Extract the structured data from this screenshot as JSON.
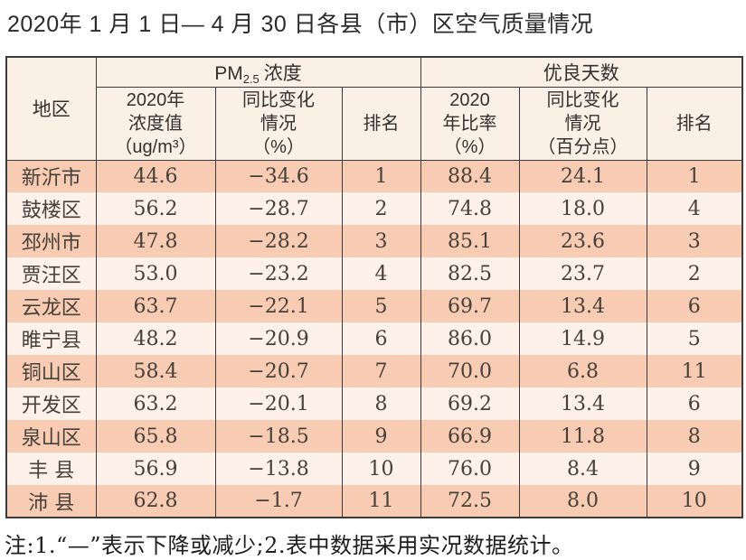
{
  "title": "2020年 1 月 1 日— 4 月 30 日各县（市）区空气质量情况",
  "colors": {
    "row_dark": "#f8ccb2",
    "row_light": "#fdf1e9",
    "header_bg": "#faf0e6",
    "border": "#3a3a3a",
    "page_bg": "#ffffff"
  },
  "table": {
    "group_headers": {
      "region": "地区",
      "pm25_prefix": "PM",
      "pm25_sub": "2.5",
      "pm25_suffix": "浓度",
      "good_days": "优良天数"
    },
    "column_headers": {
      "pm_value": "2020年\n浓度值\n（ug/m³）",
      "pm_change": "同比变化\n情况\n（%）",
      "pm_rank": "排名",
      "good_rate": "2020\n年比率\n（%）",
      "good_change": "同比变化\n情况\n（百分点）",
      "good_rank": "排名"
    },
    "rows": [
      {
        "region": "新沂市",
        "pm_value": "44.6",
        "pm_change": "−34.6",
        "pm_rank": "1",
        "good_rate": "88.4",
        "good_change": "24.1",
        "good_rank": "1"
      },
      {
        "region": "鼓楼区",
        "pm_value": "56.2",
        "pm_change": "−28.7",
        "pm_rank": "2",
        "good_rate": "74.8",
        "good_change": "18.0",
        "good_rank": "4"
      },
      {
        "region": "邳州市",
        "pm_value": "47.8",
        "pm_change": "−28.2",
        "pm_rank": "3",
        "good_rate": "85.1",
        "good_change": "23.6",
        "good_rank": "3"
      },
      {
        "region": "贾汪区",
        "pm_value": "53.0",
        "pm_change": "−23.2",
        "pm_rank": "4",
        "good_rate": "82.5",
        "good_change": "23.7",
        "good_rank": "2"
      },
      {
        "region": "云龙区",
        "pm_value": "63.7",
        "pm_change": "−22.1",
        "pm_rank": "5",
        "good_rate": "69.7",
        "good_change": "13.4",
        "good_rank": "6"
      },
      {
        "region": "睢宁县",
        "pm_value": "48.2",
        "pm_change": "−20.9",
        "pm_rank": "6",
        "good_rate": "86.0",
        "good_change": "14.9",
        "good_rank": "5"
      },
      {
        "region": "铜山区",
        "pm_value": "58.4",
        "pm_change": "−20.7",
        "pm_rank": "7",
        "good_rate": "70.0",
        "good_change": "6.8",
        "good_rank": "11"
      },
      {
        "region": "开发区",
        "pm_value": "63.2",
        "pm_change": "−20.1",
        "pm_rank": "8",
        "good_rate": "69.2",
        "good_change": "13.4",
        "good_rank": "6"
      },
      {
        "region": "泉山区",
        "pm_value": "65.8",
        "pm_change": "−18.5",
        "pm_rank": "9",
        "good_rate": "66.9",
        "good_change": "11.8",
        "good_rank": "8"
      },
      {
        "region": "丰 县",
        "pm_value": "56.9",
        "pm_change": "−13.8",
        "pm_rank": "10",
        "good_rate": "76.0",
        "good_change": "8.4",
        "good_rank": "9"
      },
      {
        "region": "沛 县",
        "pm_value": "62.8",
        "pm_change": "−1.7",
        "pm_rank": "11",
        "good_rate": "72.5",
        "good_change": "8.0",
        "good_rank": "10"
      }
    ]
  },
  "footnote": "注:1.“—”表示下降或减少;2.表中数据采用实况数据统计。"
}
